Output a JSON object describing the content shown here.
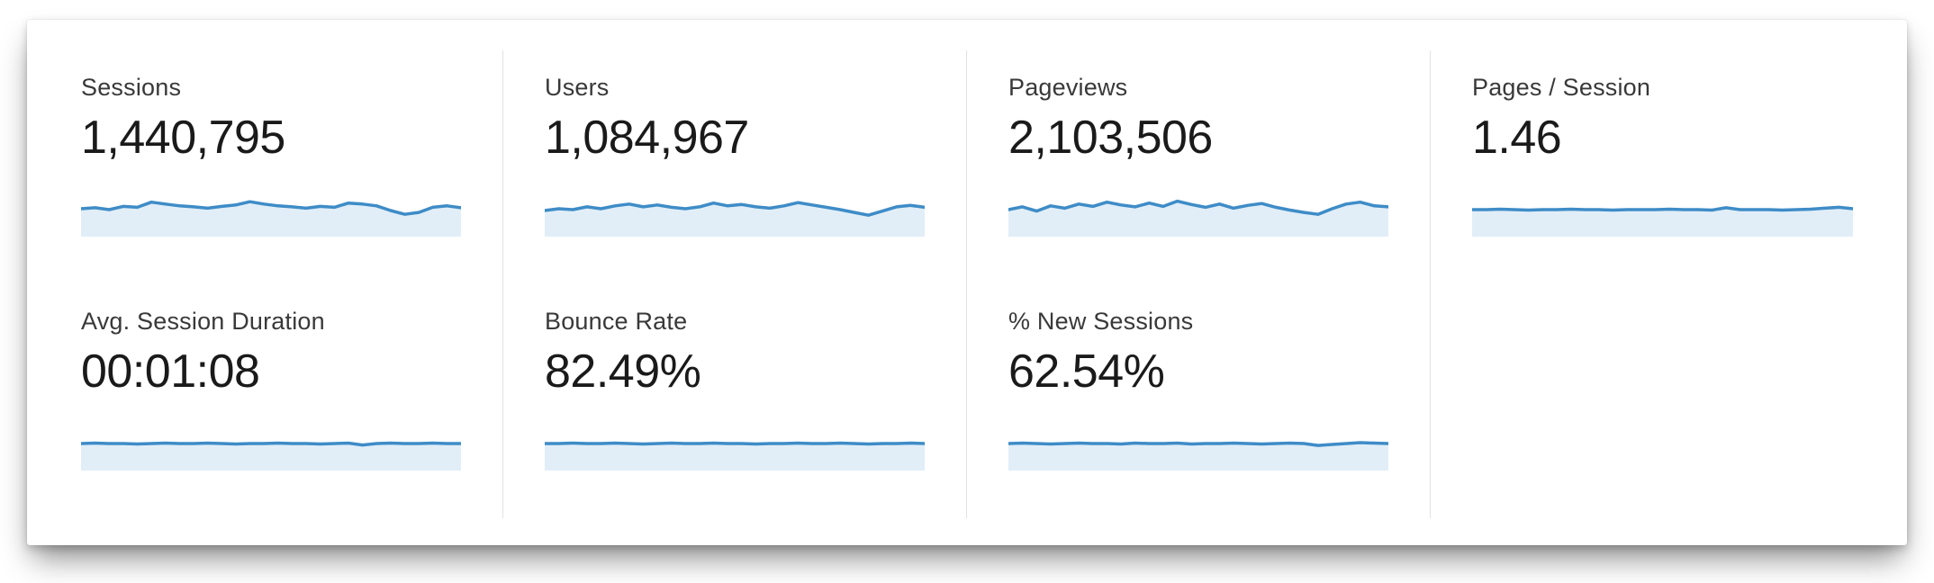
{
  "colors": {
    "spark_line": "#3e8cc7",
    "spark_fill": "#e1eef8",
    "divider": "#e2e2e2",
    "label_text": "#393939",
    "value_text": "#1a1a1a"
  },
  "metrics": [
    {
      "label": "Sessions",
      "value": "1,440,795"
    },
    {
      "label": "Users",
      "value": "1,084,967"
    },
    {
      "label": "Pageviews",
      "value": "2,103,506"
    },
    {
      "label": "Pages / Session",
      "value": "1.46"
    },
    {
      "label": "Avg. Session Duration",
      "value": "00:01:08"
    },
    {
      "label": "Bounce Rate",
      "value": "82.49%"
    },
    {
      "label": "% New Sessions",
      "value": "62.54%"
    }
  ],
  "chart_data": {
    "type": "line",
    "note": "unlabeled sparklines under each metric; values are normalized 0-1 estimates (no axes shown in UI)",
    "legend_position": "none",
    "grid": false,
    "series": [
      {
        "name": "Sessions",
        "values": [
          0.52,
          0.54,
          0.5,
          0.57,
          0.55,
          0.66,
          0.62,
          0.58,
          0.56,
          0.53,
          0.57,
          0.6,
          0.67,
          0.62,
          0.58,
          0.56,
          0.53,
          0.57,
          0.55,
          0.64,
          0.62,
          0.58,
          0.48,
          0.4,
          0.44,
          0.55,
          0.58,
          0.54
        ]
      },
      {
        "name": "Users",
        "values": [
          0.48,
          0.52,
          0.5,
          0.56,
          0.52,
          0.58,
          0.62,
          0.56,
          0.6,
          0.55,
          0.52,
          0.56,
          0.64,
          0.58,
          0.61,
          0.56,
          0.53,
          0.58,
          0.65,
          0.6,
          0.55,
          0.5,
          0.44,
          0.38,
          0.47,
          0.56,
          0.59,
          0.55
        ]
      },
      {
        "name": "Pageviews",
        "values": [
          0.5,
          0.56,
          0.47,
          0.58,
          0.53,
          0.62,
          0.57,
          0.66,
          0.6,
          0.56,
          0.64,
          0.57,
          0.68,
          0.61,
          0.55,
          0.62,
          0.53,
          0.59,
          0.63,
          0.55,
          0.49,
          0.44,
          0.4,
          0.52,
          0.62,
          0.66,
          0.58,
          0.56
        ]
      },
      {
        "name": "Pages / Session",
        "values": [
          0.5,
          0.5,
          0.51,
          0.5,
          0.49,
          0.5,
          0.5,
          0.51,
          0.5,
          0.5,
          0.49,
          0.5,
          0.5,
          0.5,
          0.51,
          0.5,
          0.5,
          0.49,
          0.54,
          0.5,
          0.5,
          0.5,
          0.49,
          0.5,
          0.51,
          0.53,
          0.55,
          0.52
        ]
      },
      {
        "name": "Avg. Session Duration",
        "values": [
          0.5,
          0.51,
          0.5,
          0.5,
          0.49,
          0.5,
          0.51,
          0.5,
          0.5,
          0.51,
          0.5,
          0.49,
          0.5,
          0.5,
          0.51,
          0.5,
          0.5,
          0.49,
          0.5,
          0.51,
          0.47,
          0.5,
          0.51,
          0.5,
          0.5,
          0.51,
          0.5,
          0.5
        ]
      },
      {
        "name": "Bounce Rate",
        "values": [
          0.5,
          0.5,
          0.51,
          0.5,
          0.5,
          0.51,
          0.5,
          0.49,
          0.5,
          0.51,
          0.5,
          0.5,
          0.51,
          0.5,
          0.5,
          0.49,
          0.5,
          0.5,
          0.51,
          0.5,
          0.5,
          0.51,
          0.5,
          0.49,
          0.5,
          0.5,
          0.51,
          0.5
        ]
      },
      {
        "name": "% New Sessions",
        "values": [
          0.5,
          0.51,
          0.5,
          0.49,
          0.5,
          0.51,
          0.5,
          0.5,
          0.49,
          0.51,
          0.5,
          0.5,
          0.51,
          0.49,
          0.5,
          0.5,
          0.51,
          0.5,
          0.49,
          0.5,
          0.51,
          0.5,
          0.46,
          0.48,
          0.5,
          0.52,
          0.51,
          0.5
        ]
      }
    ]
  }
}
